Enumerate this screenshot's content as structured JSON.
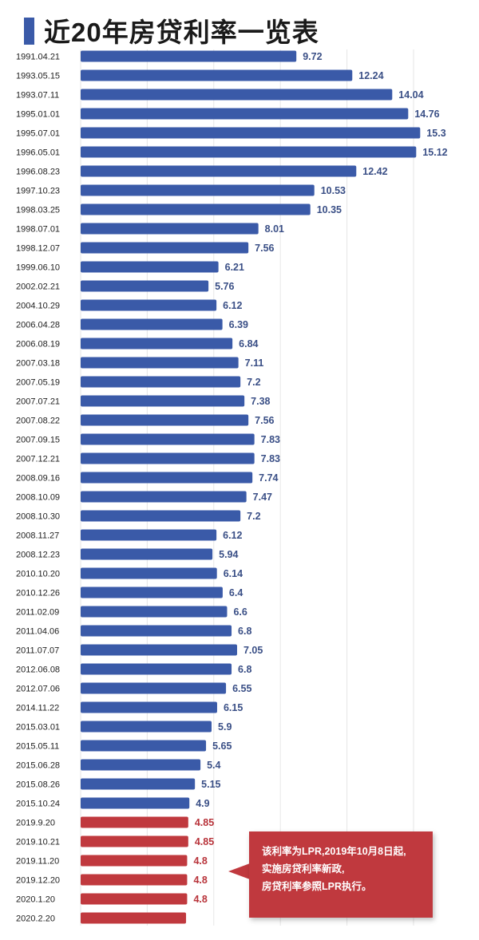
{
  "title": "近20年房贷利率一览表",
  "colors": {
    "pboc": "#3a5aa8",
    "lpr": "#c0393e"
  },
  "callout": [
    "该利率为LPR,2019年10月8日起,",
    "实施房贷利率新政,",
    "房贷利率参照LPR执行。"
  ],
  "chart_data": {
    "type": "bar",
    "orientation": "horizontal",
    "title": "近20年房贷利率一览表",
    "xlabel": "",
    "ylabel": "",
    "xlim": [
      0,
      16
    ],
    "grid": true,
    "categories": [
      "1991.04.21",
      "1993.05.15",
      "1993.07.11",
      "1995.01.01",
      "1995.07.01",
      "1996.05.01",
      "1996.08.23",
      "1997.10.23",
      "1998.03.25",
      "1998.07.01",
      "1998.12.07",
      "1999.06.10",
      "2002.02.21",
      "2004.10.29",
      "2006.04.28",
      "2006.08.19",
      "2007.03.18",
      "2007.05.19",
      "2007.07.21",
      "2007.08.22",
      "2007.09.15",
      "2007.12.21",
      "2008.09.16",
      "2008.10.09",
      "2008.10.30",
      "2008.11.27",
      "2008.12.23",
      "2010.10.20",
      "2010.12.26",
      "2011.02.09",
      "2011.04.06",
      "2011.07.07",
      "2012.06.08",
      "2012.07.06",
      "2014.11.22",
      "2015.03.01",
      "2015.05.11",
      "2015.06.28",
      "2015.08.26",
      "2015.10.24",
      "2019.9.20",
      "2019.10.21",
      "2019.11.20",
      "2019.12.20",
      "2020.1.20",
      "2020.2.20"
    ],
    "values": [
      9.72,
      12.24,
      14.04,
      14.76,
      15.3,
      15.12,
      12.42,
      10.53,
      10.35,
      8.01,
      7.56,
      6.21,
      5.76,
      6.12,
      6.39,
      6.84,
      7.11,
      7.2,
      7.38,
      7.56,
      7.83,
      7.83,
      7.74,
      7.47,
      7.2,
      6.12,
      5.94,
      6.14,
      6.4,
      6.6,
      6.8,
      7.05,
      6.8,
      6.55,
      6.15,
      5.9,
      5.65,
      5.4,
      5.15,
      4.9,
      4.85,
      4.85,
      4.8,
      4.8,
      4.8,
      4.75
    ],
    "labels": [
      "9.72",
      "12.24",
      "14.04",
      "14.76",
      "15.3",
      "15.12",
      "12.42",
      "10.53",
      "10.35",
      "8.01",
      "7.56",
      "6.21",
      "5.76",
      "6.12",
      "6.39",
      "6.84",
      "7.11",
      "7.2",
      "7.38",
      "7.56",
      "7.83",
      "7.83",
      "7.74",
      "7.47",
      "7.2",
      "6.12",
      "5.94",
      "6.14",
      "6.4",
      "6.6",
      "6.8",
      "7.05",
      "6.8",
      "6.55",
      "6.15",
      "5.9",
      "5.65",
      "5.4",
      "5.15",
      "4.9",
      "4.85",
      "4.85",
      "4.8",
      "4.8",
      "4.8",
      ""
    ],
    "lpr_from_index": 40
  }
}
